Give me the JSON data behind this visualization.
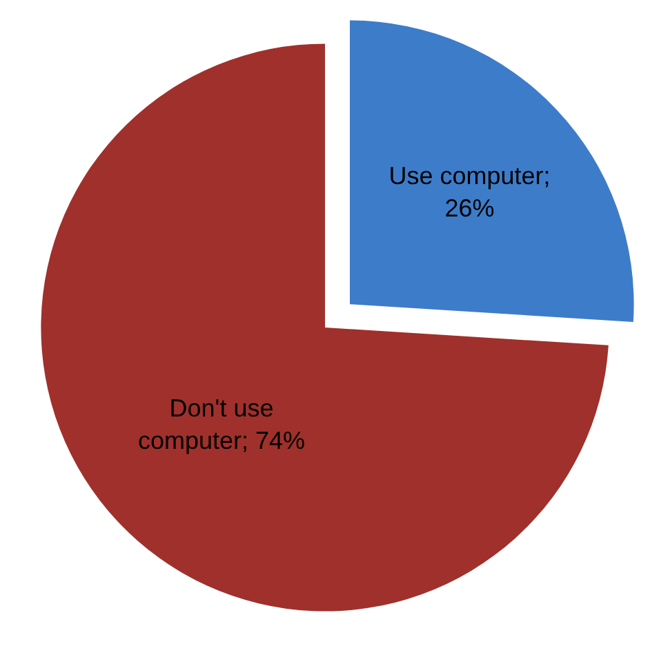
{
  "chart_data": {
    "type": "pie",
    "categories": [
      "Use computer; 26%",
      "Don't use computer; 74%"
    ],
    "values": [
      26,
      74
    ],
    "colors": [
      "#3d7cc9",
      "#a0302b"
    ],
    "legend": false
  }
}
